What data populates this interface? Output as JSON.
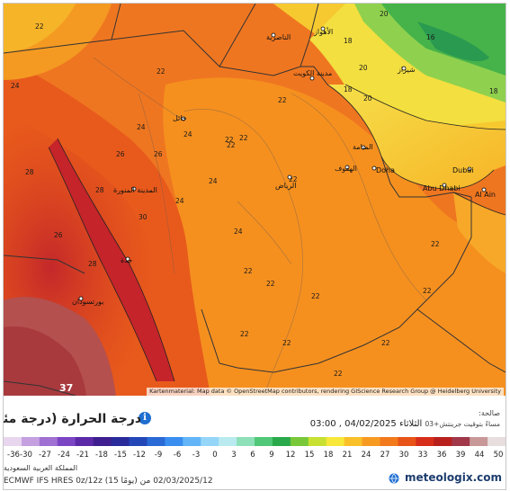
{
  "map": {
    "attribution": "Kartenmaterial: Map data © OpenStreetMap contributors, rendering GIScience Research Group @ Heidelberg University",
    "corner_value": "37",
    "temperature_labels": [
      {
        "id": "t1",
        "text": "22"
      },
      {
        "id": "t2",
        "text": "24"
      },
      {
        "id": "t3",
        "text": "22"
      },
      {
        "id": "t4",
        "text": "20"
      },
      {
        "id": "t5",
        "text": "18"
      },
      {
        "id": "t6",
        "text": "22"
      },
      {
        "id": "t7",
        "text": "24"
      },
      {
        "id": "t8",
        "text": "26"
      },
      {
        "id": "t9",
        "text": "24"
      },
      {
        "id": "t10",
        "text": "22"
      },
      {
        "id": "t11",
        "text": "22"
      },
      {
        "id": "t12",
        "text": "24"
      },
      {
        "id": "t13",
        "text": "22"
      },
      {
        "id": "t14",
        "text": "22"
      },
      {
        "id": "t15",
        "text": "22"
      },
      {
        "id": "t16",
        "text": "22"
      },
      {
        "id": "t17",
        "text": "22"
      },
      {
        "id": "t18",
        "text": "22"
      },
      {
        "id": "t19",
        "text": "22"
      },
      {
        "id": "t20",
        "text": "22"
      },
      {
        "id": "t21",
        "text": "24"
      },
      {
        "id": "t22",
        "text": "26"
      },
      {
        "id": "t23",
        "text": "28"
      },
      {
        "id": "t24",
        "text": "30"
      },
      {
        "id": "t25",
        "text": "28"
      },
      {
        "id": "t26",
        "text": "26"
      },
      {
        "id": "t27",
        "text": "28"
      },
      {
        "id": "t28",
        "text": "20"
      },
      {
        "id": "t29",
        "text": "18"
      },
      {
        "id": "t30",
        "text": "16"
      },
      {
        "id": "t31",
        "text": "20"
      },
      {
        "id": "t32",
        "text": "18"
      },
      {
        "id": "t33",
        "text": "22"
      },
      {
        "id": "t34",
        "text": "24"
      },
      {
        "id": "t35",
        "text": "22"
      },
      {
        "id": "t36",
        "text": "22"
      }
    ],
    "cities": [
      {
        "id": "riyadh",
        "text": "الرياض"
      },
      {
        "id": "medina",
        "text": "المدينة المنورة"
      },
      {
        "id": "hail",
        "text": "حائل"
      },
      {
        "id": "kuwait",
        "text": "مدينة الكويت"
      },
      {
        "id": "nasiriyah",
        "text": "الناصرية"
      },
      {
        "id": "doha",
        "text": "Doha"
      },
      {
        "id": "dubai",
        "text": "Dubai"
      },
      {
        "id": "abudhabi",
        "text": "Abu Dhabi"
      },
      {
        "id": "alain",
        "text": "Al Ain"
      },
      {
        "id": "manama",
        "text": "المنامة"
      },
      {
        "id": "portsudan",
        "text": "بورتسودان"
      },
      {
        "id": "jeddah",
        "text": "جدة"
      },
      {
        "id": "shiraz",
        "text": "شيراز"
      },
      {
        "id": "hofuf",
        "text": "الهفوف"
      },
      {
        "id": "ahwaz",
        "text": "الأهواز"
      }
    ]
  },
  "info": {
    "title": "درجة الحرارة (درجة مئوية)",
    "updated_label": "صالحة:",
    "run_time": "الثلاثاء 04/02/2025 , 03:00",
    "run_suffix": "مساءً بتوقيت جرينتش+03",
    "info_icon": "i"
  },
  "scale": {
    "ticks": [
      "-36",
      "-30",
      "-27",
      "-24",
      "-21",
      "-18",
      "-15",
      "-12",
      "-9",
      "-6",
      "-3",
      "0",
      "3",
      "6",
      "9",
      "12",
      "15",
      "18",
      "21",
      "24",
      "27",
      "30",
      "33",
      "36",
      "39",
      "44",
      "50"
    ],
    "colors": [
      "#e8d6ef",
      "#c4a0e0",
      "#a070d2",
      "#7b45c4",
      "#5c2aa8",
      "#3f1f8f",
      "#2a2b9a",
      "#2447b8",
      "#2a6ad6",
      "#3a8ef0",
      "#63b5f7",
      "#95d6f8",
      "#b9eaef",
      "#8ee0b8",
      "#50c878",
      "#2aa94a",
      "#78c83a",
      "#c8e032",
      "#f7e83a",
      "#f9c02a",
      "#f79a22",
      "#f27a1c",
      "#e85418",
      "#d62e1a",
      "#b8201e",
      "#a0384a",
      "#c89898",
      "#e8dede"
    ]
  },
  "footer": {
    "country": "المملكة العربية السعودية",
    "model": "ECMWF IFS HRES 0z/12z (15 يومًا) 02/03/2025/12 من",
    "brand": "meteologix.com",
    "brand_icon": "globe-icon"
  }
}
